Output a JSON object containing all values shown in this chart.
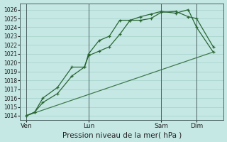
{
  "title": "Pression niveau de la mer( hPa )",
  "bg_color": "#c5e8e5",
  "grid_color": "#aad4cc",
  "line_color": "#2a6632",
  "ylim": [
    1013.5,
    1026.7
  ],
  "yticks": [
    1014,
    1015,
    1016,
    1017,
    1018,
    1019,
    1020,
    1021,
    1022,
    1023,
    1024,
    1025,
    1026
  ],
  "xtick_labels": [
    "Ven",
    "Lun",
    "Sam",
    "Dim"
  ],
  "xtick_positions": [
    0.0,
    3.0,
    6.5,
    8.2
  ],
  "vline_positions": [
    0.0,
    3.0,
    6.5,
    8.2
  ],
  "xlim": [
    -0.3,
    9.5
  ],
  "series1_x": [
    0,
    0.4,
    0.8,
    1.5,
    2.2,
    2.8,
    3.0,
    3.5,
    4.0,
    4.5,
    5.0,
    5.5,
    6.0,
    6.5,
    7.2,
    7.8,
    8.2,
    9.0
  ],
  "series1_y": [
    1014.0,
    1014.4,
    1015.5,
    1016.5,
    1018.5,
    1019.5,
    1020.8,
    1021.3,
    1021.8,
    1023.2,
    1024.8,
    1024.8,
    1025.0,
    1025.7,
    1025.8,
    1025.2,
    1025.0,
    1021.8
  ],
  "series2_x": [
    0,
    0.4,
    0.8,
    1.5,
    2.2,
    2.8,
    3.0,
    3.5,
    4.0,
    4.5,
    5.0,
    5.5,
    6.0,
    6.5,
    7.2,
    7.8,
    8.2,
    9.0
  ],
  "series2_y": [
    1014.0,
    1014.4,
    1016.0,
    1017.2,
    1019.5,
    1019.5,
    1021.0,
    1022.5,
    1023.0,
    1024.8,
    1024.8,
    1025.2,
    1025.5,
    1025.8,
    1025.6,
    1026.0,
    1024.0,
    1021.2
  ],
  "series3_x": [
    0,
    9.0
  ],
  "series3_y": [
    1014.0,
    1021.2
  ],
  "xlabel_fontsize": 7.5,
  "ytick_fontsize": 5.5,
  "xtick_fontsize": 6.5
}
